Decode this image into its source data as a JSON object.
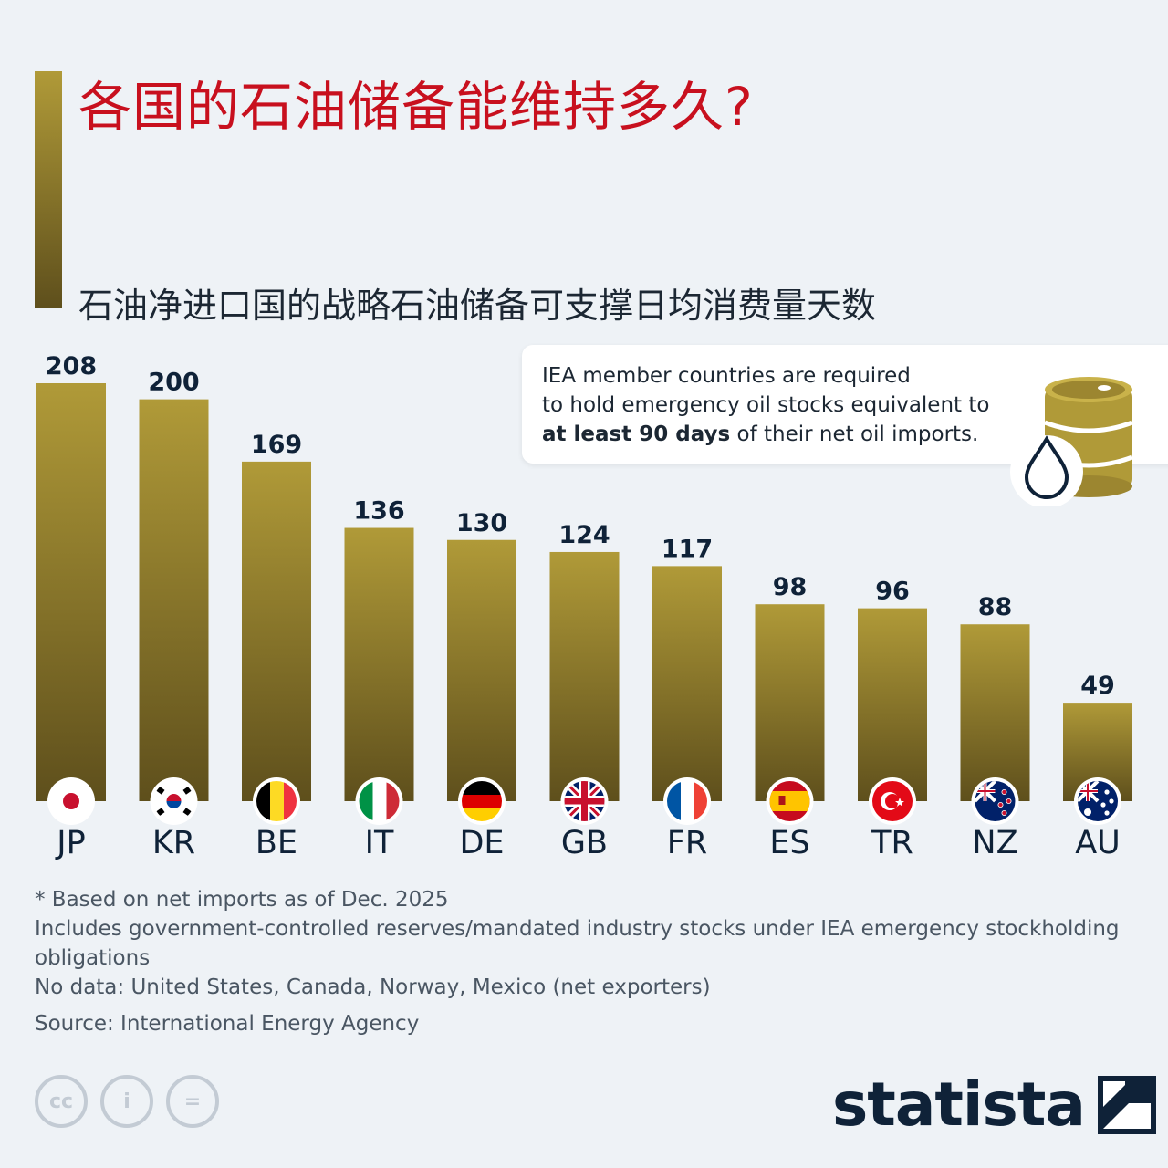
{
  "title": "各国的石油储备能维持多久?",
  "subtitle": "石油净进口国的战略石油储备可支撑日均消费量天数",
  "colors": {
    "title": "#c8101e",
    "bar_top": "#b09a38",
    "bar_bottom": "#5e4f1c",
    "text": "#0f2238"
  },
  "chart_data": {
    "type": "bar",
    "title": "石油净进口国的战略石油储备可支撑日均消费量天数",
    "categories": [
      "JP",
      "KR",
      "BE",
      "IT",
      "DE",
      "GB",
      "FR",
      "ES",
      "TR",
      "NZ",
      "AU"
    ],
    "values": [
      208,
      200,
      169,
      136,
      130,
      124,
      117,
      98,
      96,
      88,
      49
    ],
    "xlabel": "",
    "ylabel": "",
    "ylim": [
      0,
      208
    ],
    "flags": [
      "japan-flag",
      "south-korea-flag",
      "belgium-flag",
      "italy-flag",
      "germany-flag",
      "uk-flag",
      "france-flag",
      "spain-flag",
      "turkey-flag",
      "new-zealand-flag",
      "australia-flag"
    ]
  },
  "callout": {
    "line1": "IEA member countries are required",
    "line2": "to hold emergency oil stocks equivalent to",
    "bold": "at least 90 days",
    "rest": " of their net oil imports.",
    "icon": "oil-barrel-icon"
  },
  "notes": {
    "line1": "* Based on net imports as of Dec. 2025",
    "line2": "Includes government-controlled reserves/mandated industry stocks under IEA emergency stockholding obligations",
    "line3": "No data: United States, Canada, Norway, Mexico (net exporters)",
    "source": "Source: International Energy Agency"
  },
  "license_icons": [
    "cc",
    "i",
    "="
  ],
  "logo": "statista"
}
